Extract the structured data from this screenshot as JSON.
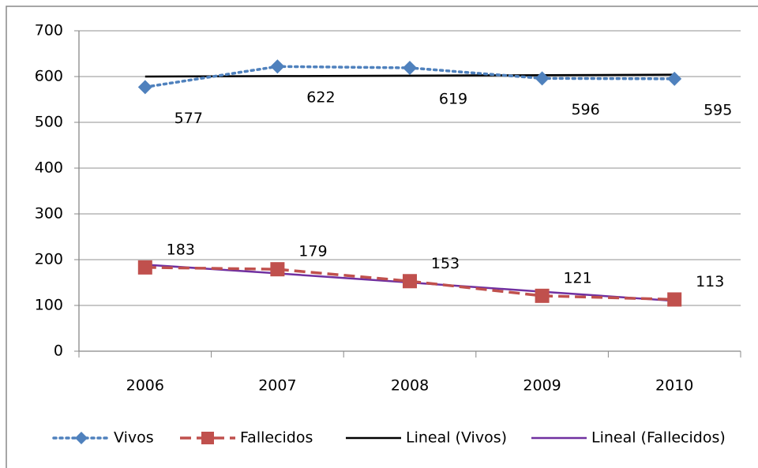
{
  "chart_data": {
    "type": "line",
    "categories": [
      "2006",
      "2007",
      "2008",
      "2009",
      "2010"
    ],
    "series": [
      {
        "name": "Vivos",
        "color": "#4f81bd",
        "style": "dotted",
        "marker": "diamond",
        "labels": "below",
        "values": [
          577,
          622,
          619,
          596,
          595
        ]
      },
      {
        "name": "Fallecidos",
        "color": "#c0504d",
        "style": "dashed",
        "marker": "square",
        "labels": "above",
        "values": [
          183,
          179,
          153,
          121,
          113
        ]
      },
      {
        "name": "Lineal (Vivos)",
        "color": "#000000",
        "style": "solid",
        "marker": "none",
        "values": [
          600,
          601,
          602,
          603,
          604
        ]
      },
      {
        "name": "Lineal (Fallecidos)",
        "color": "#7030a0",
        "style": "solid",
        "marker": "none",
        "values": [
          189,
          170,
          150,
          130,
          110
        ]
      }
    ],
    "ylim": [
      0,
      700
    ],
    "yticks": [
      0,
      100,
      200,
      300,
      400,
      500,
      600,
      700
    ],
    "grid": true,
    "legend": "bottom"
  }
}
